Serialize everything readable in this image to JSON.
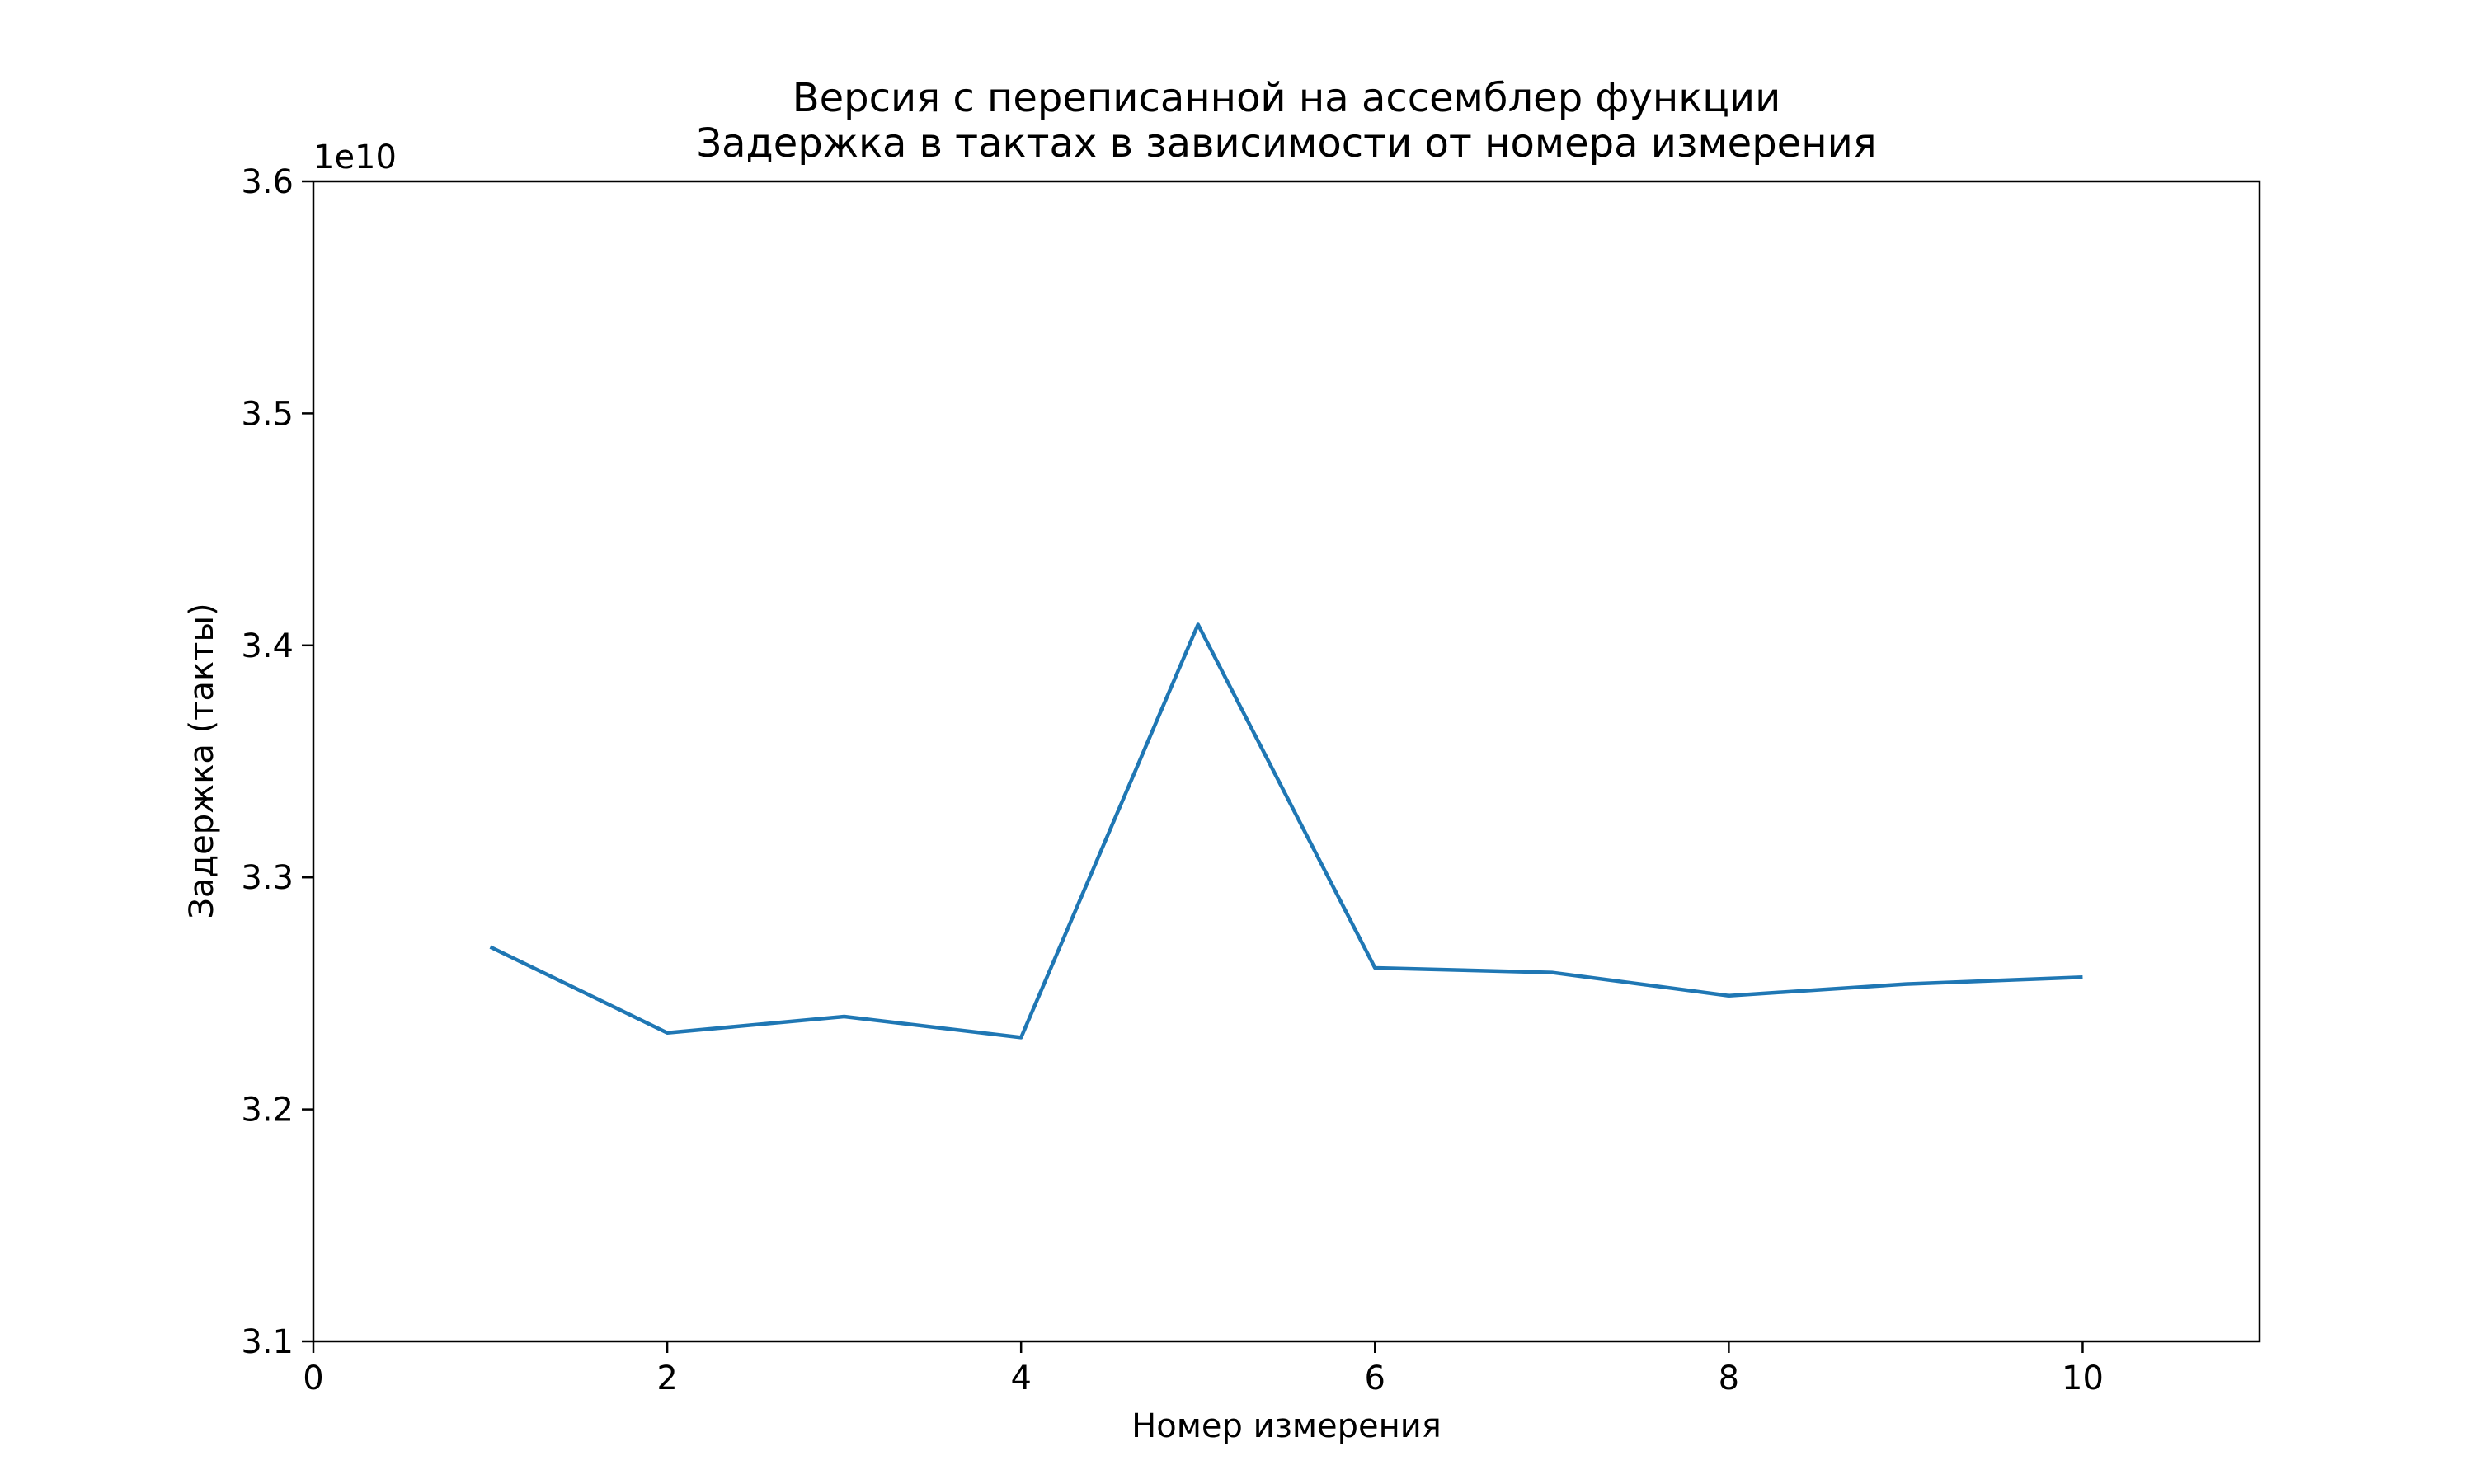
{
  "chart_data": {
    "type": "line",
    "title": "Версия с переписанной на ассемблер функции",
    "subtitle": "Задержка в тактах в зависимости от номера измерения",
    "xlabel": "Номер измерения",
    "ylabel": "Задержка (такты)",
    "y_offset_text": "1e10",
    "xlim": [
      0,
      11
    ],
    "ylim": [
      3.1,
      3.6
    ],
    "xticks": [
      0,
      2,
      4,
      6,
      8,
      10
    ],
    "xtick_labels": [
      "0",
      "2",
      "4",
      "6",
      "8",
      "10"
    ],
    "yticks": [
      3.1,
      3.2,
      3.3,
      3.4,
      3.5,
      3.6
    ],
    "ytick_labels": [
      "3.1",
      "3.2",
      "3.3",
      "3.4",
      "3.5",
      "3.6"
    ],
    "grid": false,
    "series": [
      {
        "color": "#1f77b4",
        "x": [
          1,
          2,
          3,
          4,
          5,
          6,
          7,
          8,
          9,
          10
        ],
        "values": [
          3.27,
          3.233,
          3.24,
          3.231,
          3.409,
          3.261,
          3.259,
          3.249,
          3.254,
          3.257
        ]
      }
    ]
  }
}
